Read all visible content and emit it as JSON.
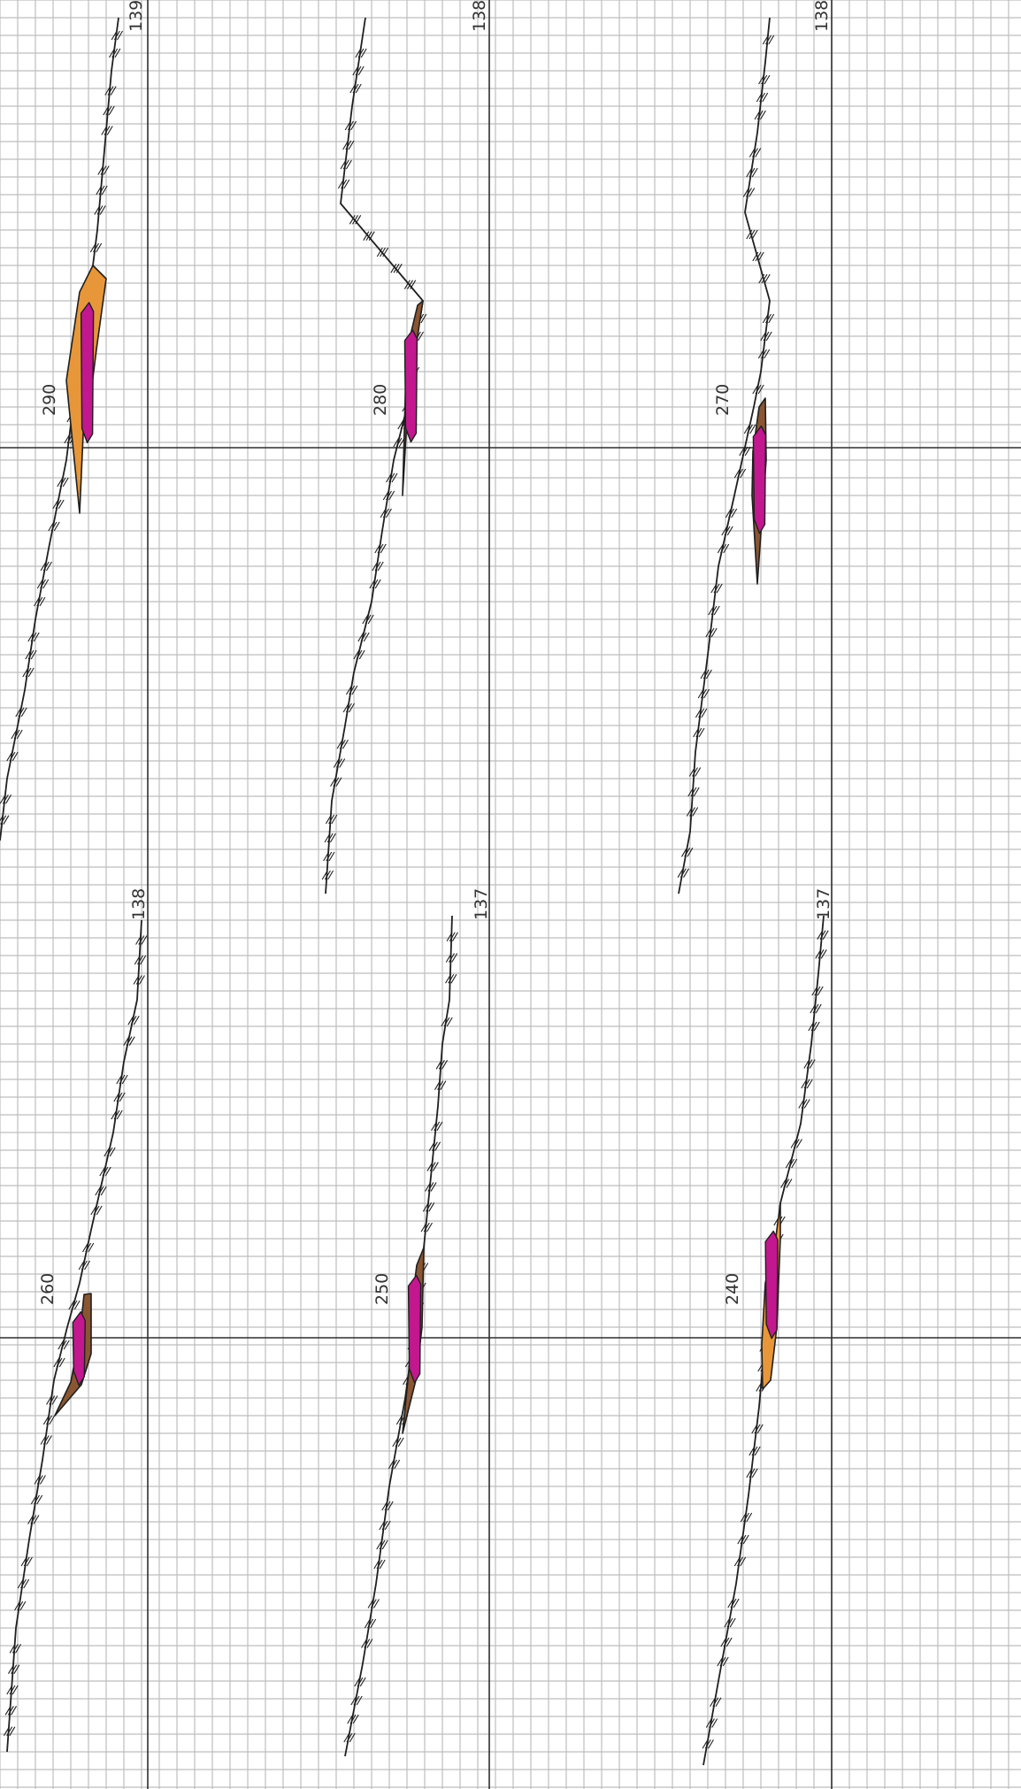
{
  "sheet": {
    "colors": {
      "paper": "#ffffff",
      "grid": "#bdbdbd",
      "axis": "#2e2e2e",
      "ground_line": "#1f1f1f",
      "fill_magenta": "#c2178e",
      "fill_orange": "#e7973a",
      "fill_brown": "#8a5632"
    }
  },
  "panels": [
    {
      "station": "290",
      "elevation": "139",
      "band": "orange",
      "stroke": [
        [
          134,
          20
        ],
        [
          126,
          80
        ],
        [
          118,
          170
        ],
        [
          110,
          260
        ],
        [
          105,
          300
        ],
        [
          90,
          400
        ],
        [
          75,
          520
        ],
        [
          55,
          620
        ],
        [
          40,
          700
        ],
        [
          28,
          780
        ],
        [
          8,
          880
        ],
        [
          0,
          950
        ]
      ],
      "polygon": [
        [
          105,
          300
        ],
        [
          120,
          315
        ],
        [
          109,
          395
        ],
        [
          104,
          435
        ],
        [
          96,
          446
        ],
        [
          90,
          580
        ],
        [
          75,
          430
        ],
        [
          90,
          330
        ]
      ]
    },
    {
      "station": "280",
      "elevation": "138",
      "band": "brown",
      "stroke": [
        [
          413,
          20
        ],
        [
          410,
          40
        ],
        [
          398,
          120
        ],
        [
          385,
          230
        ],
        [
          478,
          340
        ],
        [
          468,
          400
        ],
        [
          465,
          440
        ],
        [
          445,
          520
        ],
        [
          432,
          600
        ],
        [
          420,
          680
        ],
        [
          400,
          760
        ],
        [
          390,
          820
        ],
        [
          375,
          905
        ],
        [
          368,
          1010
        ]
      ],
      "polygon": [
        [
          478,
          340
        ],
        [
          472,
          345
        ],
        [
          460,
          395
        ],
        [
          458,
          450
        ],
        [
          455,
          560
        ],
        [
          462,
          440
        ],
        [
          466,
          420
        ]
      ]
    },
    {
      "station": "270",
      "elevation": "138",
      "band": "brown",
      "stroke": [
        [
          870,
          20
        ],
        [
          865,
          70
        ],
        [
          856,
          150
        ],
        [
          842,
          240
        ],
        [
          870,
          340
        ],
        [
          860,
          420
        ],
        [
          852,
          460
        ],
        [
          830,
          560
        ],
        [
          812,
          640
        ],
        [
          800,
          740
        ],
        [
          786,
          850
        ],
        [
          780,
          940
        ],
        [
          767,
          1010
        ]
      ],
      "polygon": [
        [
          865,
          450
        ],
        [
          858,
          460
        ],
        [
          851,
          510
        ],
        [
          850,
          560
        ],
        [
          856,
          660
        ],
        [
          863,
          560
        ],
        [
          866,
          520
        ]
      ]
    },
    {
      "station": "260",
      "elevation": "138",
      "band": "brown",
      "stroke": [
        [
          160,
          1040
        ],
        [
          155,
          1130
        ],
        [
          140,
          1200
        ],
        [
          128,
          1280
        ],
        [
          103,
          1390
        ],
        [
          90,
          1450
        ],
        [
          76,
          1500
        ],
        [
          61,
          1560
        ],
        [
          48,
          1650
        ],
        [
          33,
          1740
        ],
        [
          18,
          1840
        ],
        [
          8,
          1980
        ]
      ],
      "polygon": [
        [
          103,
          1462
        ],
        [
          95,
          1463
        ],
        [
          90,
          1510
        ],
        [
          80,
          1562
        ],
        [
          62,
          1600
        ],
        [
          92,
          1565
        ],
        [
          103,
          1530
        ]
      ]
    },
    {
      "station": "250",
      "elevation": "137",
      "band": "brown",
      "stroke": [
        [
          511,
          1035
        ],
        [
          508,
          1130
        ],
        [
          500,
          1180
        ],
        [
          495,
          1250
        ],
        [
          479,
          1410
        ],
        [
          469,
          1500
        ],
        [
          458,
          1580
        ],
        [
          440,
          1680
        ],
        [
          425,
          1790
        ],
        [
          410,
          1880
        ],
        [
          390,
          1985
        ]
      ],
      "polygon": [
        [
          479,
          1410
        ],
        [
          471,
          1430
        ],
        [
          466,
          1470
        ],
        [
          462,
          1550
        ],
        [
          455,
          1620
        ],
        [
          470,
          1560
        ],
        [
          477,
          1500
        ]
      ]
    },
    {
      "station": "240",
      "elevation": "137",
      "band": "orange",
      "stroke": [
        [
          931,
          1035
        ],
        [
          925,
          1100
        ],
        [
          917,
          1180
        ],
        [
          905,
          1270
        ],
        [
          882,
          1360
        ],
        [
          876,
          1420
        ],
        [
          866,
          1500
        ],
        [
          858,
          1590
        ],
        [
          846,
          1690
        ],
        [
          832,
          1790
        ],
        [
          812,
          1900
        ],
        [
          795,
          1995
        ]
      ],
      "polygon": [
        [
          882,
          1360
        ],
        [
          876,
          1405
        ],
        [
          865,
          1450
        ],
        [
          861,
          1520
        ],
        [
          862,
          1570
        ],
        [
          871,
          1560
        ],
        [
          878,
          1500
        ],
        [
          882,
          1400
        ]
      ]
    }
  ]
}
